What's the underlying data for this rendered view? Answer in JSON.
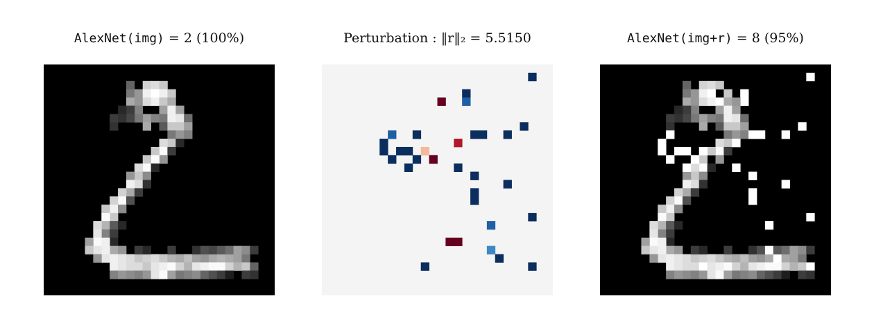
{
  "panels": {
    "original": {
      "title_model": "AlexNet(img)",
      "title_rest": " = 2 (100%)",
      "background": "#000000"
    },
    "perturbation": {
      "title_text": "Perturbation : ‖r‖₂ = 5.5150",
      "background": "#f4f4f4"
    },
    "adversarial": {
      "title_model": "AlexNet(img+r)",
      "title_rest": " = 8 (95%)",
      "background": "#000000"
    }
  },
  "grid_size": 28,
  "colors": {
    "neg_strong": "#0b2e5e",
    "neg_mid": "#1f5fa3",
    "neg_light": "#3f87c4",
    "pos_strong": "#67001f",
    "pos_mid": "#b2182b",
    "pos_light": "#f4b89a"
  },
  "digit": [
    [
      10,
      2,
      100
    ],
    [
      10,
      3,
      120
    ],
    [
      10,
      4,
      170
    ],
    [
      11,
      3,
      150
    ],
    [
      11,
      4,
      150
    ],
    [
      12,
      2,
      210
    ],
    [
      12,
      3,
      240
    ],
    [
      12,
      4,
      220
    ],
    [
      13,
      2,
      220
    ],
    [
      13,
      3,
      255
    ],
    [
      13,
      4,
      240
    ],
    [
      14,
      2,
      200
    ],
    [
      14,
      3,
      240
    ],
    [
      14,
      4,
      200
    ],
    [
      14,
      5,
      160
    ],
    [
      14,
      6,
      120
    ],
    [
      14,
      7,
      90
    ],
    [
      15,
      3,
      200
    ],
    [
      15,
      4,
      170
    ],
    [
      15,
      5,
      240
    ],
    [
      15,
      6,
      240
    ],
    [
      15,
      7,
      200
    ],
    [
      15,
      8,
      120
    ],
    [
      16,
      5,
      160
    ],
    [
      16,
      6,
      230
    ],
    [
      16,
      7,
      200
    ],
    [
      16,
      8,
      150
    ],
    [
      17,
      6,
      110
    ],
    [
      17,
      7,
      160
    ],
    [
      17,
      8,
      130
    ],
    [
      12,
      6,
      160
    ],
    [
      12,
      7,
      170
    ],
    [
      13,
      6,
      130
    ],
    [
      11,
      5,
      130
    ],
    [
      11,
      6,
      120
    ],
    [
      10,
      5,
      60
    ],
    [
      10,
      6,
      70
    ],
    [
      9,
      6,
      50
    ],
    [
      9,
      5,
      40
    ],
    [
      8,
      6,
      60
    ],
    [
      8,
      7,
      50
    ],
    [
      15,
      9,
      200
    ],
    [
      14,
      9,
      220
    ],
    [
      14,
      10,
      250
    ],
    [
      13,
      10,
      200
    ],
    [
      14,
      11,
      150
    ],
    [
      13,
      11,
      250
    ],
    [
      12,
      11,
      200
    ],
    [
      12,
      12,
      250
    ],
    [
      11,
      12,
      220
    ],
    [
      11,
      13,
      200
    ],
    [
      12,
      13,
      140
    ],
    [
      10,
      13,
      150
    ],
    [
      11,
      14,
      220
    ],
    [
      10,
      14,
      240
    ],
    [
      10,
      15,
      170
    ],
    [
      9,
      15,
      210
    ],
    [
      9,
      16,
      250
    ],
    [
      8,
      16,
      210
    ],
    [
      8,
      17,
      240
    ],
    [
      9,
      17,
      140
    ],
    [
      7,
      17,
      200
    ],
    [
      8,
      18,
      200
    ],
    [
      7,
      18,
      250
    ],
    [
      7,
      19,
      180
    ],
    [
      6,
      19,
      220
    ],
    [
      8,
      19,
      90
    ],
    [
      7,
      20,
      130
    ],
    [
      6,
      20,
      230
    ],
    [
      6,
      21,
      250
    ],
    [
      5,
      21,
      160
    ],
    [
      8,
      20,
      60
    ],
    [
      9,
      19,
      40
    ],
    [
      10,
      16,
      80
    ],
    [
      11,
      15,
      60
    ],
    [
      12,
      14,
      50
    ],
    [
      13,
      12,
      40
    ],
    [
      15,
      10,
      60
    ],
    [
      16,
      9,
      40
    ],
    [
      8,
      21,
      40
    ],
    [
      7,
      21,
      240
    ],
    [
      8,
      22,
      170
    ],
    [
      7,
      22,
      240
    ],
    [
      6,
      22,
      230
    ],
    [
      5,
      22,
      200
    ],
    [
      9,
      22,
      150
    ],
    [
      7,
      23,
      230
    ],
    [
      8,
      23,
      240
    ],
    [
      9,
      23,
      230
    ],
    [
      10,
      23,
      220
    ],
    [
      11,
      23,
      200
    ],
    [
      12,
      23,
      210
    ],
    [
      13,
      23,
      220
    ],
    [
      14,
      23,
      200
    ],
    [
      15,
      23,
      180
    ],
    [
      16,
      23,
      170
    ],
    [
      17,
      23,
      190
    ],
    [
      18,
      23,
      160
    ],
    [
      19,
      23,
      150
    ],
    [
      20,
      23,
      170
    ],
    [
      21,
      23,
      180
    ],
    [
      22,
      23,
      170
    ],
    [
      23,
      23,
      160
    ],
    [
      24,
      23,
      120
    ],
    [
      11,
      22,
      60
    ],
    [
      12,
      22,
      40
    ],
    [
      15,
      22,
      60
    ],
    [
      18,
      22,
      50
    ],
    [
      19,
      22,
      80
    ],
    [
      20,
      22,
      70
    ],
    [
      21,
      22,
      90
    ],
    [
      22,
      22,
      110
    ],
    [
      23,
      22,
      160
    ],
    [
      24,
      22,
      140
    ],
    [
      25,
      22,
      60
    ],
    [
      6,
      23,
      150
    ],
    [
      8,
      24,
      240
    ],
    [
      9,
      24,
      230
    ],
    [
      10,
      24,
      220
    ],
    [
      11,
      24,
      220
    ],
    [
      12,
      24,
      200
    ],
    [
      13,
      24,
      230
    ],
    [
      14,
      24,
      240
    ],
    [
      15,
      24,
      250
    ],
    [
      16,
      24,
      210
    ],
    [
      17,
      24,
      180
    ],
    [
      18,
      24,
      230
    ],
    [
      19,
      24,
      240
    ],
    [
      20,
      24,
      250
    ],
    [
      21,
      24,
      250
    ],
    [
      22,
      24,
      210
    ],
    [
      23,
      24,
      180
    ],
    [
      24,
      24,
      200
    ],
    [
      25,
      24,
      100
    ],
    [
      8,
      25,
      130
    ],
    [
      9,
      25,
      150
    ],
    [
      10,
      25,
      140
    ],
    [
      11,
      25,
      130
    ],
    [
      12,
      25,
      150
    ],
    [
      13,
      25,
      230
    ],
    [
      14,
      25,
      250
    ],
    [
      15,
      25,
      160
    ],
    [
      16,
      25,
      120
    ],
    [
      17,
      25,
      130
    ],
    [
      18,
      25,
      140
    ],
    [
      19,
      25,
      100
    ],
    [
      20,
      25,
      80
    ],
    [
      21,
      25,
      60
    ],
    [
      22,
      25,
      30
    ],
    [
      24,
      25,
      60
    ],
    [
      25,
      25,
      50
    ]
  ],
  "perturbation_cells": [
    [
      25,
      1,
      "neg_strong"
    ],
    [
      17,
      3,
      "neg_strong"
    ],
    [
      17,
      4,
      "neg_mid"
    ],
    [
      14,
      4,
      "pos_strong"
    ],
    [
      24,
      7,
      "neg_strong"
    ],
    [
      8,
      8,
      "neg_mid"
    ],
    [
      11,
      8,
      "neg_strong"
    ],
    [
      18,
      8,
      "neg_strong"
    ],
    [
      19,
      8,
      "neg_strong"
    ],
    [
      22,
      8,
      "neg_strong"
    ],
    [
      7,
      9,
      "neg_strong"
    ],
    [
      16,
      9,
      "pos_mid"
    ],
    [
      7,
      10,
      "neg_strong"
    ],
    [
      9,
      10,
      "neg_strong"
    ],
    [
      10,
      10,
      "neg_strong"
    ],
    [
      12,
      10,
      "pos_light"
    ],
    [
      8,
      11,
      "neg_strong"
    ],
    [
      11,
      11,
      "neg_strong"
    ],
    [
      13,
      11,
      "pos_strong"
    ],
    [
      10,
      12,
      "neg_strong"
    ],
    [
      16,
      12,
      "neg_strong"
    ],
    [
      18,
      13,
      "neg_strong"
    ],
    [
      22,
      14,
      "neg_strong"
    ],
    [
      18,
      15,
      "neg_strong"
    ],
    [
      18,
      16,
      "neg_strong"
    ],
    [
      25,
      18,
      "neg_strong"
    ],
    [
      20,
      19,
      "neg_mid"
    ],
    [
      15,
      21,
      "pos_strong"
    ],
    [
      16,
      21,
      "pos_strong"
    ],
    [
      20,
      22,
      "neg_light"
    ],
    [
      21,
      23,
      "neg_strong"
    ],
    [
      12,
      24,
      "neg_strong"
    ],
    [
      25,
      24,
      "neg_strong"
    ]
  ],
  "adversarial_changes": [
    [
      25,
      1,
      255
    ],
    [
      14,
      3,
      0
    ],
    [
      14,
      4,
      255
    ],
    [
      17,
      3,
      255
    ],
    [
      17,
      4,
      255
    ],
    [
      16,
      4,
      150
    ],
    [
      24,
      7,
      255
    ],
    [
      8,
      8,
      255
    ],
    [
      11,
      8,
      0
    ],
    [
      18,
      8,
      255
    ],
    [
      19,
      8,
      255
    ],
    [
      22,
      8,
      255
    ],
    [
      7,
      9,
      255
    ],
    [
      16,
      9,
      255
    ],
    [
      7,
      10,
      255
    ],
    [
      9,
      10,
      255
    ],
    [
      10,
      10,
      255
    ],
    [
      12,
      10,
      255
    ],
    [
      8,
      11,
      255
    ],
    [
      11,
      11,
      255
    ],
    [
      13,
      11,
      0
    ],
    [
      10,
      12,
      255
    ],
    [
      16,
      12,
      255
    ],
    [
      18,
      13,
      255
    ],
    [
      22,
      14,
      255
    ],
    [
      18,
      15,
      255
    ],
    [
      18,
      16,
      255
    ],
    [
      25,
      18,
      255
    ],
    [
      20,
      19,
      255
    ],
    [
      15,
      21,
      0
    ],
    [
      16,
      21,
      0
    ],
    [
      20,
      22,
      255
    ],
    [
      21,
      23,
      255
    ],
    [
      12,
      24,
      255
    ],
    [
      25,
      24,
      255
    ],
    [
      8,
      9,
      0
    ],
    [
      9,
      9,
      0
    ],
    [
      6,
      10,
      0
    ]
  ]
}
